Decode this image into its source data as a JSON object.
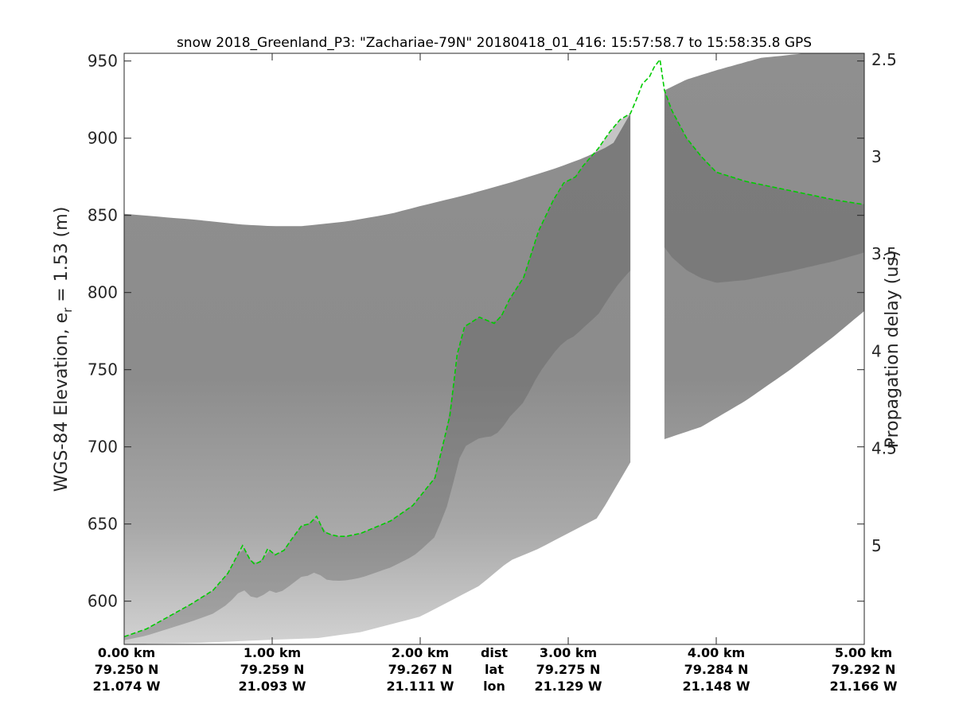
{
  "chart_data": {
    "type": "radar-echogram",
    "title": "snow 2018_Greenland_P3: \"Zachariae-79N\"  20180418_01_416: 15:57:58.7 to 15:58:35.8 GPS",
    "ylabel_main": "WGS-84 Elevation, e",
    "ylabel_sub": "r",
    "ylabel_tail": " = 1.53 (m)",
    "y2label": "Propagation delay (us)",
    "ylim": [
      572,
      955
    ],
    "xlim": [
      0,
      5
    ],
    "yticks": [
      600,
      650,
      700,
      750,
      800,
      850,
      900,
      950
    ],
    "y2ticks": [
      {
        "label": "2.5",
        "elev": 951
      },
      {
        "label": "3",
        "elev": 888
      },
      {
        "label": "3.5",
        "elev": 825
      },
      {
        "label": "4",
        "elev": 762
      },
      {
        "label": "4.5",
        "elev": 699
      },
      {
        "label": "5",
        "elev": 636
      }
    ],
    "x_row_labels": [
      "dist",
      "lat",
      "lon"
    ],
    "x_ticks": [
      {
        "km": 0,
        "dist": "0.00 km",
        "lat": "79.250 N",
        "lon": "21.074 W"
      },
      {
        "km": 1,
        "dist": "1.00 km",
        "lat": "79.259 N",
        "lon": "21.093 W"
      },
      {
        "km": 2,
        "dist": "2.00 km",
        "lat": "79.267 N",
        "lon": "21.111 W"
      },
      {
        "km": 3,
        "dist": "3.00 km",
        "lat": "79.275 N",
        "lon": "21.129 W"
      },
      {
        "km": 4,
        "dist": "4.00 km",
        "lat": "79.284 N",
        "lon": "21.148 W"
      },
      {
        "km": 5,
        "dist": "5.00 km",
        "lat": "79.292 N",
        "lon": "21.166 W"
      }
    ],
    "data_gap_km": [
      3.42,
      3.65
    ],
    "surface_pick": {
      "color": "#00cc00",
      "x": [
        0,
        0.15,
        0.3,
        0.45,
        0.55,
        0.6,
        0.7,
        0.8,
        0.85,
        0.88,
        0.93,
        0.97,
        1.02,
        1.08,
        1.13,
        1.2,
        1.25,
        1.3,
        1.35,
        1.4,
        1.45,
        1.5,
        1.6,
        1.8,
        1.95,
        2.1,
        2.2,
        2.25,
        2.3,
        2.35,
        2.4,
        2.5,
        2.55,
        2.6,
        2.7,
        2.8,
        2.9,
        2.97,
        3.05,
        3.1,
        3.2,
        3.28,
        3.35,
        3.42,
        3.46,
        3.5,
        3.55,
        3.58,
        3.62,
        3.65,
        3.7,
        3.8,
        3.9,
        4.0,
        4.2,
        4.4,
        4.6,
        4.8,
        5.0
      ],
      "y": [
        577,
        582,
        590,
        598,
        604,
        607,
        618,
        636,
        627,
        624,
        626,
        634,
        630,
        633,
        640,
        649,
        650,
        655,
        645,
        643,
        642,
        642,
        644,
        652,
        662,
        680,
        720,
        760,
        778,
        781,
        784,
        780,
        785,
        795,
        810,
        840,
        860,
        871,
        875,
        882,
        893,
        904,
        912,
        916,
        925,
        935,
        940,
        946,
        951,
        931,
        918,
        900,
        888,
        878,
        872,
        868,
        864,
        860,
        857
      ]
    },
    "radargram": {
      "top_edge": {
        "x": [
          0,
          0.5,
          0.8,
          1.0,
          1.2,
          1.5,
          1.8,
          2.0,
          2.3,
          2.6,
          2.9,
          3.1,
          3.3,
          3.42,
          3.65,
          3.8,
          4.0,
          4.3,
          4.6,
          4.8,
          5.0
        ],
        "y": [
          851,
          847,
          844,
          843,
          843,
          846,
          851,
          856,
          863,
          871,
          880,
          887,
          896,
          916,
          931,
          938,
          944,
          952,
          955,
          955,
          955
        ]
      },
      "bottom_edge": {
        "x": [
          0,
          0.5,
          1.0,
          1.3,
          1.6,
          2.0,
          2.4,
          2.6,
          2.8,
          3.0,
          3.2,
          3.42,
          3.65,
          3.9,
          4.2,
          4.5,
          4.8,
          5.0
        ],
        "y": [
          572,
          573,
          575,
          576,
          580,
          590,
          610,
          626,
          634,
          644,
          654,
          690,
          705,
          713,
          730,
          750,
          772,
          788
        ]
      }
    }
  }
}
